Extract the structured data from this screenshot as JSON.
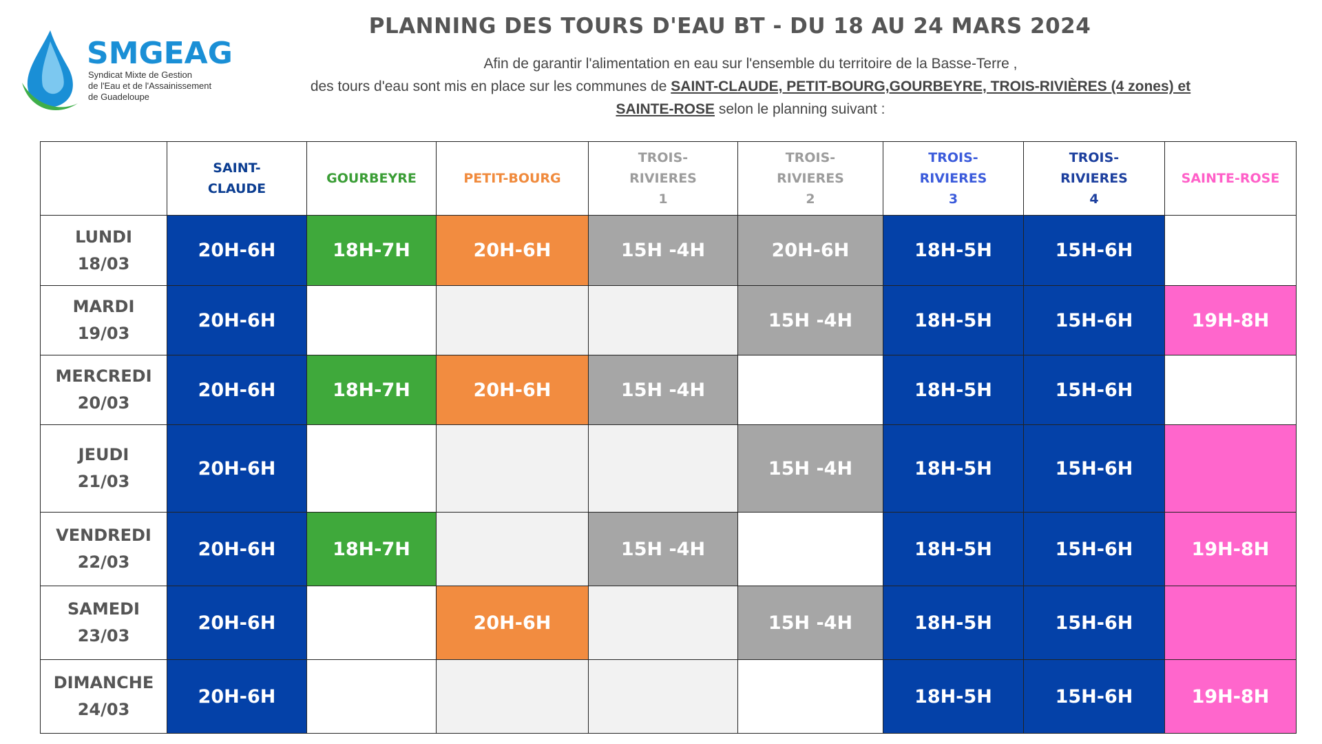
{
  "header": {
    "title": "PLANNING DES TOURS D'EAU BT - DU 18 AU 24 MARS 2024",
    "intro": [
      "Afin de garantir l'alimentation en eau sur l'ensemble du territoire de la Basse-Terre ,",
      "des tours d'eau sont mis en place sur les communes de ",
      "SAINT-CLAUDE, PETIT-BOURG,GOURBEYRE, TROIS-RIVIÈRES (4 zones) et",
      "SAINTE-ROSE",
      " selon le planning suivant :"
    ]
  },
  "logo": {
    "name": "SMGEAG",
    "subtitle": [
      "Syndicat Mixte de Gestion",
      "de l'Eau et de l'Assainissement",
      "de Guadeloupe"
    ]
  },
  "table": {
    "columns": [
      {
        "label": [
          "SAINT-",
          "CLAUDE"
        ],
        "color": "#0b3d91",
        "fill": "#0441a8"
      },
      {
        "label": [
          "GOURBEYRE"
        ],
        "color": "#3a9d35",
        "fill": "#3fa93b"
      },
      {
        "label": [
          "PETIT-BOURG"
        ],
        "color": "#f08a3c",
        "fill": "#f28c40"
      },
      {
        "label": [
          "TROIS-",
          "RIVIERES",
          "1"
        ],
        "color": "#9c9c9c",
        "fill": "#a6a6a6"
      },
      {
        "label": [
          "TROIS-",
          "RIVIERES",
          "2"
        ],
        "color": "#9c9c9c",
        "fill": "#a6a6a6"
      },
      {
        "label": [
          "TROIS-",
          "RIVIERES",
          "3"
        ],
        "color": "#3b5bdb",
        "fill": "#0441a8"
      },
      {
        "label": [
          "TROIS-",
          "RIVIERES",
          "4"
        ],
        "color": "#1c3f9e",
        "fill": "#0441a8"
      },
      {
        "label": [
          "SAINTE-ROSE"
        ],
        "color": "#ff5fc8",
        "fill": "#ff66cc"
      }
    ],
    "rows": [
      {
        "day": "LUNDI",
        "date": "18/03",
        "cells": [
          "20H-6H",
          "18H-7H",
          "20H-6H",
          "15H -4H",
          "20H-6H",
          "18H-5H",
          "15H-6H",
          null
        ]
      },
      {
        "day": "MARDI",
        "date": "19/03",
        "cells": [
          "20H-6H",
          null,
          null,
          null,
          "15H -4H",
          "18H-5H",
          "15H-6H",
          "19H-8H"
        ]
      },
      {
        "day": "MERCREDI",
        "date": "20/03",
        "cells": [
          "20H-6H",
          "18H-7H",
          "20H-6H",
          "15H -4H",
          null,
          "18H-5H",
          "15H-6H",
          null
        ]
      },
      {
        "day": "JEUDI",
        "date": "21/03",
        "cells": [
          "20H-6H",
          null,
          null,
          null,
          "15H -4H",
          "18H-5H",
          "15H-6H",
          null
        ]
      },
      {
        "day": "VENDREDI",
        "date": "22/03",
        "cells": [
          "20H-6H",
          "18H-7H",
          null,
          "15H -4H",
          null,
          "18H-5H",
          "15H-6H",
          "19H-8H"
        ]
      },
      {
        "day": "SAMEDI",
        "date": "23/03",
        "cells": [
          "20H-6H",
          null,
          "20H-6H",
          null,
          "15H -4H",
          "18H-5H",
          "15H-6H",
          null
        ]
      },
      {
        "day": "DIMANCHE",
        "date": "24/03",
        "cells": [
          "20H-6H",
          null,
          null,
          null,
          null,
          "18H-5H",
          "15H-6H",
          "19H-8H"
        ]
      }
    ]
  }
}
